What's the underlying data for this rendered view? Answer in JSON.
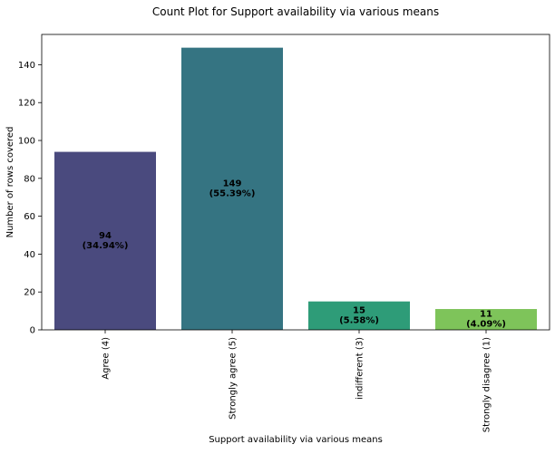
{
  "chart_data": {
    "type": "bar",
    "title": "Count Plot for Support availability via various means",
    "xlabel": "Support availability via various means",
    "ylabel": "Number of rows covered",
    "categories": [
      "Agree (4)",
      "Strongly agree (5)",
      "indifferent (3)",
      "Strongly disagree (1)"
    ],
    "values": [
      94,
      149,
      15,
      11
    ],
    "value_labels": [
      [
        "94",
        "(34.94%)"
      ],
      [
        "149",
        "(55.39%)"
      ],
      [
        "15",
        "(5.58%)"
      ],
      [
        "11",
        "(4.09%)"
      ]
    ],
    "colors": [
      "#4a4a7e",
      "#357482",
      "#2e9c78",
      "#7ec45a"
    ],
    "ylim": [
      0,
      156
    ],
    "yticks": [
      0,
      20,
      40,
      60,
      80,
      100,
      120,
      140
    ],
    "grid": false,
    "legend": "none"
  }
}
